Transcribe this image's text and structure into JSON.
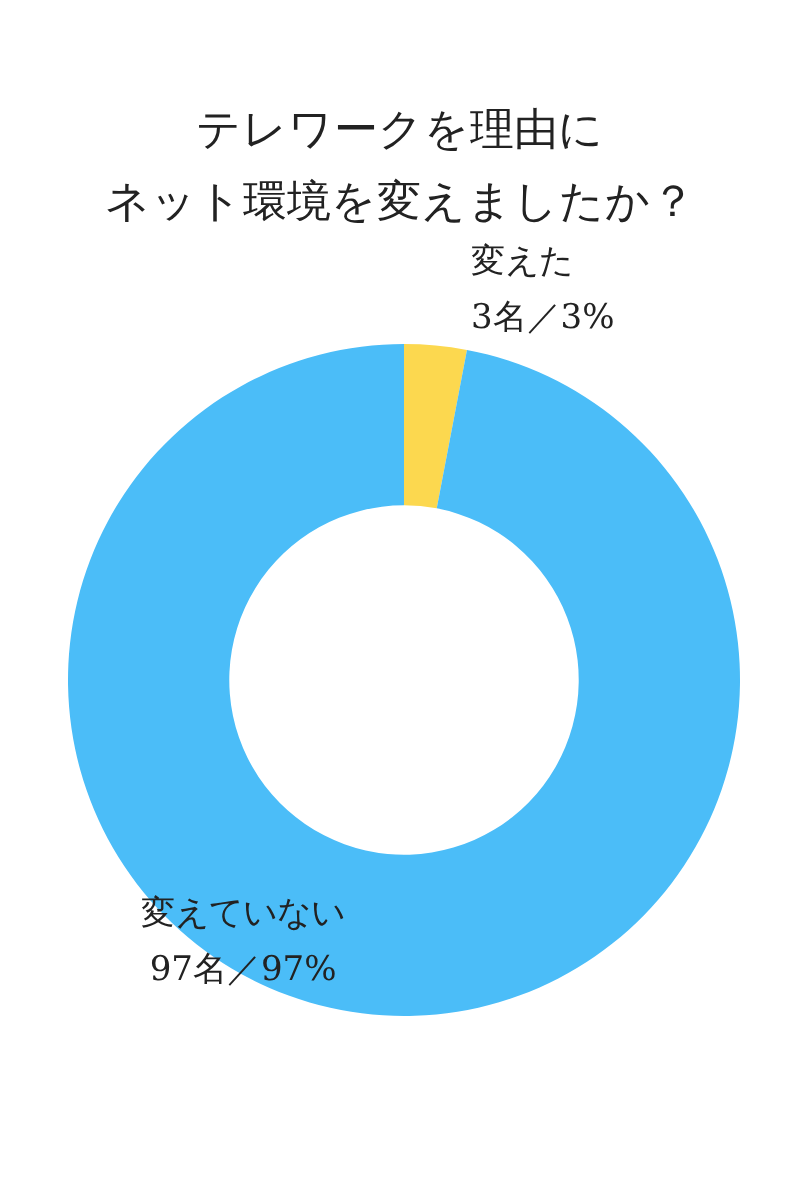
{
  "chart_data": {
    "type": "donut",
    "title": "テレワークを理由に",
    "subtitle": "ネット環境を変えましたか？",
    "categories": [
      "変えた",
      "変えていない"
    ],
    "values": [
      3,
      97
    ],
    "value_labels": [
      "3名／3%",
      "97名／97%"
    ],
    "colors": [
      "#fcd84f",
      "#4bbdf8"
    ]
  }
}
